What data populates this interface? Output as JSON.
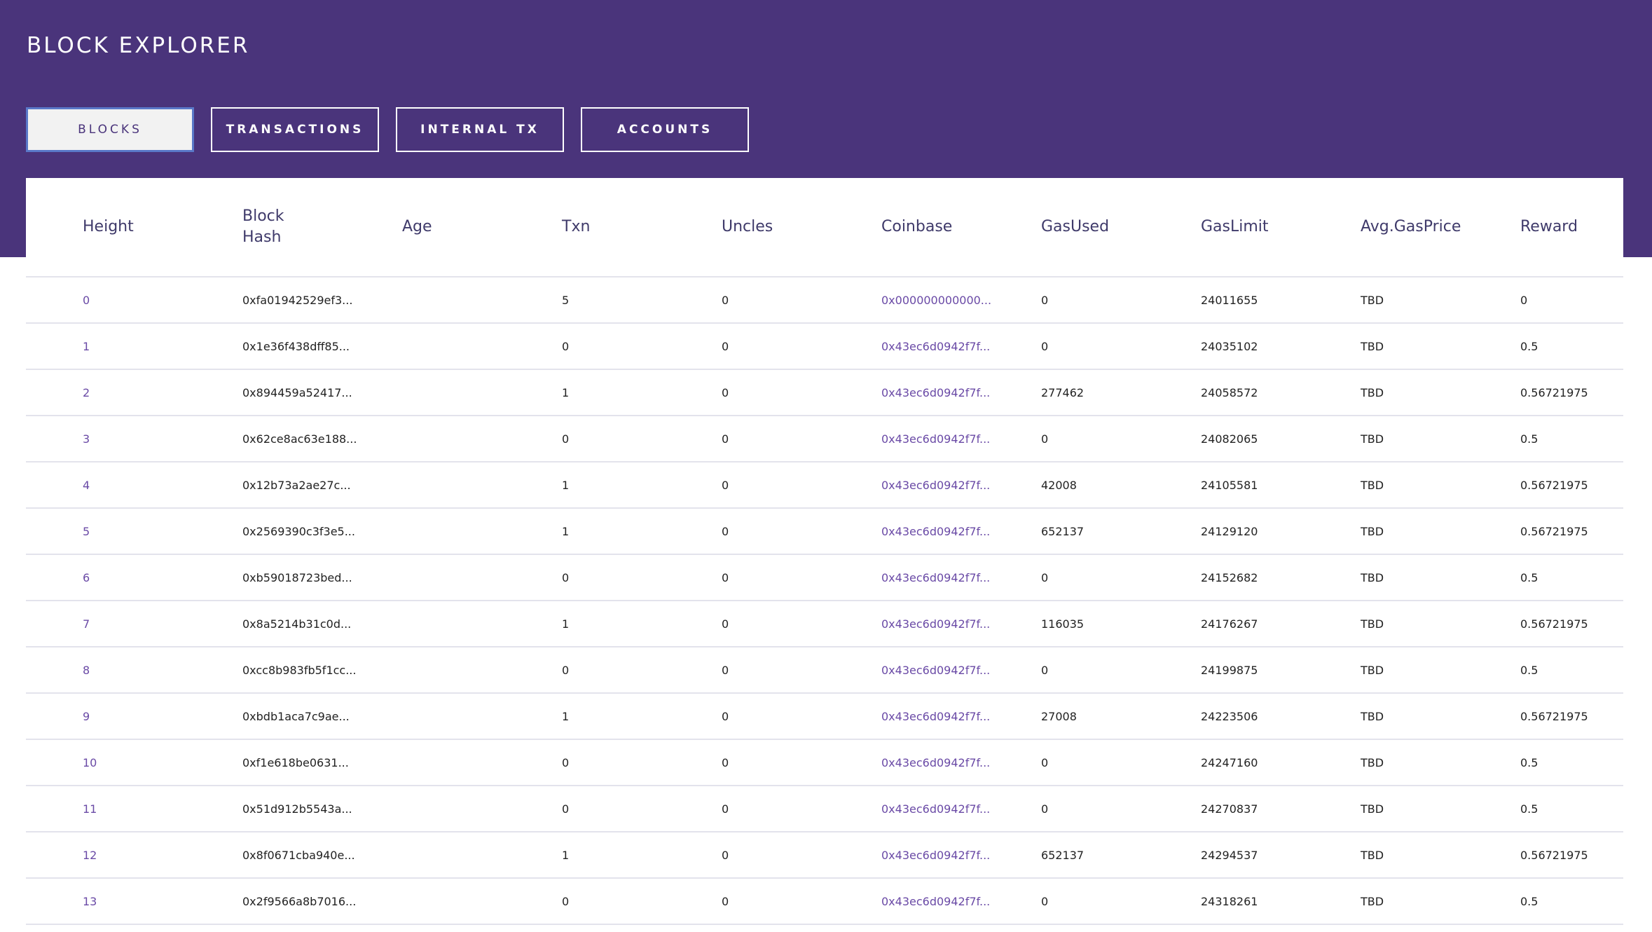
{
  "app": {
    "title": "BLOCK EXPLORER"
  },
  "tabs": [
    {
      "label": "BLOCKS",
      "active": true
    },
    {
      "label": "TRANSACTIONS",
      "active": false
    },
    {
      "label": "INTERNAL TX",
      "active": false
    },
    {
      "label": "ACCOUNTS",
      "active": false
    }
  ],
  "colors": {
    "header_bg": "#4a347b",
    "link": "#6a4aa6",
    "active_tab_border": "#5a78c8"
  },
  "table": {
    "headers": {
      "height": "Height",
      "block_hash": "Block Hash",
      "age": "Age",
      "txn": "Txn",
      "uncles": "Uncles",
      "coinbase": "Coinbase",
      "gas_used": "GasUsed",
      "gas_limit": "GasLimit",
      "avg_gas_price": "Avg.GasPrice",
      "reward": "Reward"
    },
    "rows": [
      {
        "height": "0",
        "hash": "0xfa01942529ef3...",
        "age": "",
        "txn": "5",
        "uncles": "0",
        "coinbase": "0x000000000000...",
        "gas_used": "0",
        "gas_limit": "24011655",
        "avg_gas_price": "TBD",
        "reward": "0"
      },
      {
        "height": "1",
        "hash": "0x1e36f438dff85...",
        "age": "",
        "txn": "0",
        "uncles": "0",
        "coinbase": "0x43ec6d0942f7f...",
        "gas_used": "0",
        "gas_limit": "24035102",
        "avg_gas_price": "TBD",
        "reward": "0.5"
      },
      {
        "height": "2",
        "hash": "0x894459a52417...",
        "age": "",
        "txn": "1",
        "uncles": "0",
        "coinbase": "0x43ec6d0942f7f...",
        "gas_used": "277462",
        "gas_limit": "24058572",
        "avg_gas_price": "TBD",
        "reward": "0.56721975"
      },
      {
        "height": "3",
        "hash": "0x62ce8ac63e188...",
        "age": "",
        "txn": "0",
        "uncles": "0",
        "coinbase": "0x43ec6d0942f7f...",
        "gas_used": "0",
        "gas_limit": "24082065",
        "avg_gas_price": "TBD",
        "reward": "0.5"
      },
      {
        "height": "4",
        "hash": "0x12b73a2ae27c...",
        "age": "",
        "txn": "1",
        "uncles": "0",
        "coinbase": "0x43ec6d0942f7f...",
        "gas_used": "42008",
        "gas_limit": "24105581",
        "avg_gas_price": "TBD",
        "reward": "0.56721975"
      },
      {
        "height": "5",
        "hash": "0x2569390c3f3e5...",
        "age": "",
        "txn": "1",
        "uncles": "0",
        "coinbase": "0x43ec6d0942f7f...",
        "gas_used": "652137",
        "gas_limit": "24129120",
        "avg_gas_price": "TBD",
        "reward": "0.56721975"
      },
      {
        "height": "6",
        "hash": "0xb59018723bed...",
        "age": "",
        "txn": "0",
        "uncles": "0",
        "coinbase": "0x43ec6d0942f7f...",
        "gas_used": "0",
        "gas_limit": "24152682",
        "avg_gas_price": "TBD",
        "reward": "0.5"
      },
      {
        "height": "7",
        "hash": "0x8a5214b31c0d...",
        "age": "",
        "txn": "1",
        "uncles": "0",
        "coinbase": "0x43ec6d0942f7f...",
        "gas_used": "116035",
        "gas_limit": "24176267",
        "avg_gas_price": "TBD",
        "reward": "0.56721975"
      },
      {
        "height": "8",
        "hash": "0xcc8b983fb5f1cc...",
        "age": "",
        "txn": "0",
        "uncles": "0",
        "coinbase": "0x43ec6d0942f7f...",
        "gas_used": "0",
        "gas_limit": "24199875",
        "avg_gas_price": "TBD",
        "reward": "0.5"
      },
      {
        "height": "9",
        "hash": "0xbdb1aca7c9ae...",
        "age": "",
        "txn": "1",
        "uncles": "0",
        "coinbase": "0x43ec6d0942f7f...",
        "gas_used": "27008",
        "gas_limit": "24223506",
        "avg_gas_price": "TBD",
        "reward": "0.56721975"
      },
      {
        "height": "10",
        "hash": "0xf1e618be0631...",
        "age": "",
        "txn": "0",
        "uncles": "0",
        "coinbase": "0x43ec6d0942f7f...",
        "gas_used": "0",
        "gas_limit": "24247160",
        "avg_gas_price": "TBD",
        "reward": "0.5"
      },
      {
        "height": "11",
        "hash": "0x51d912b5543a...",
        "age": "",
        "txn": "0",
        "uncles": "0",
        "coinbase": "0x43ec6d0942f7f...",
        "gas_used": "0",
        "gas_limit": "24270837",
        "avg_gas_price": "TBD",
        "reward": "0.5"
      },
      {
        "height": "12",
        "hash": "0x8f0671cba940e...",
        "age": "",
        "txn": "1",
        "uncles": "0",
        "coinbase": "0x43ec6d0942f7f...",
        "gas_used": "652137",
        "gas_limit": "24294537",
        "avg_gas_price": "TBD",
        "reward": "0.56721975"
      },
      {
        "height": "13",
        "hash": "0x2f9566a8b7016...",
        "age": "",
        "txn": "0",
        "uncles": "0",
        "coinbase": "0x43ec6d0942f7f...",
        "gas_used": "0",
        "gas_limit": "24318261",
        "avg_gas_price": "TBD",
        "reward": "0.5"
      }
    ]
  }
}
